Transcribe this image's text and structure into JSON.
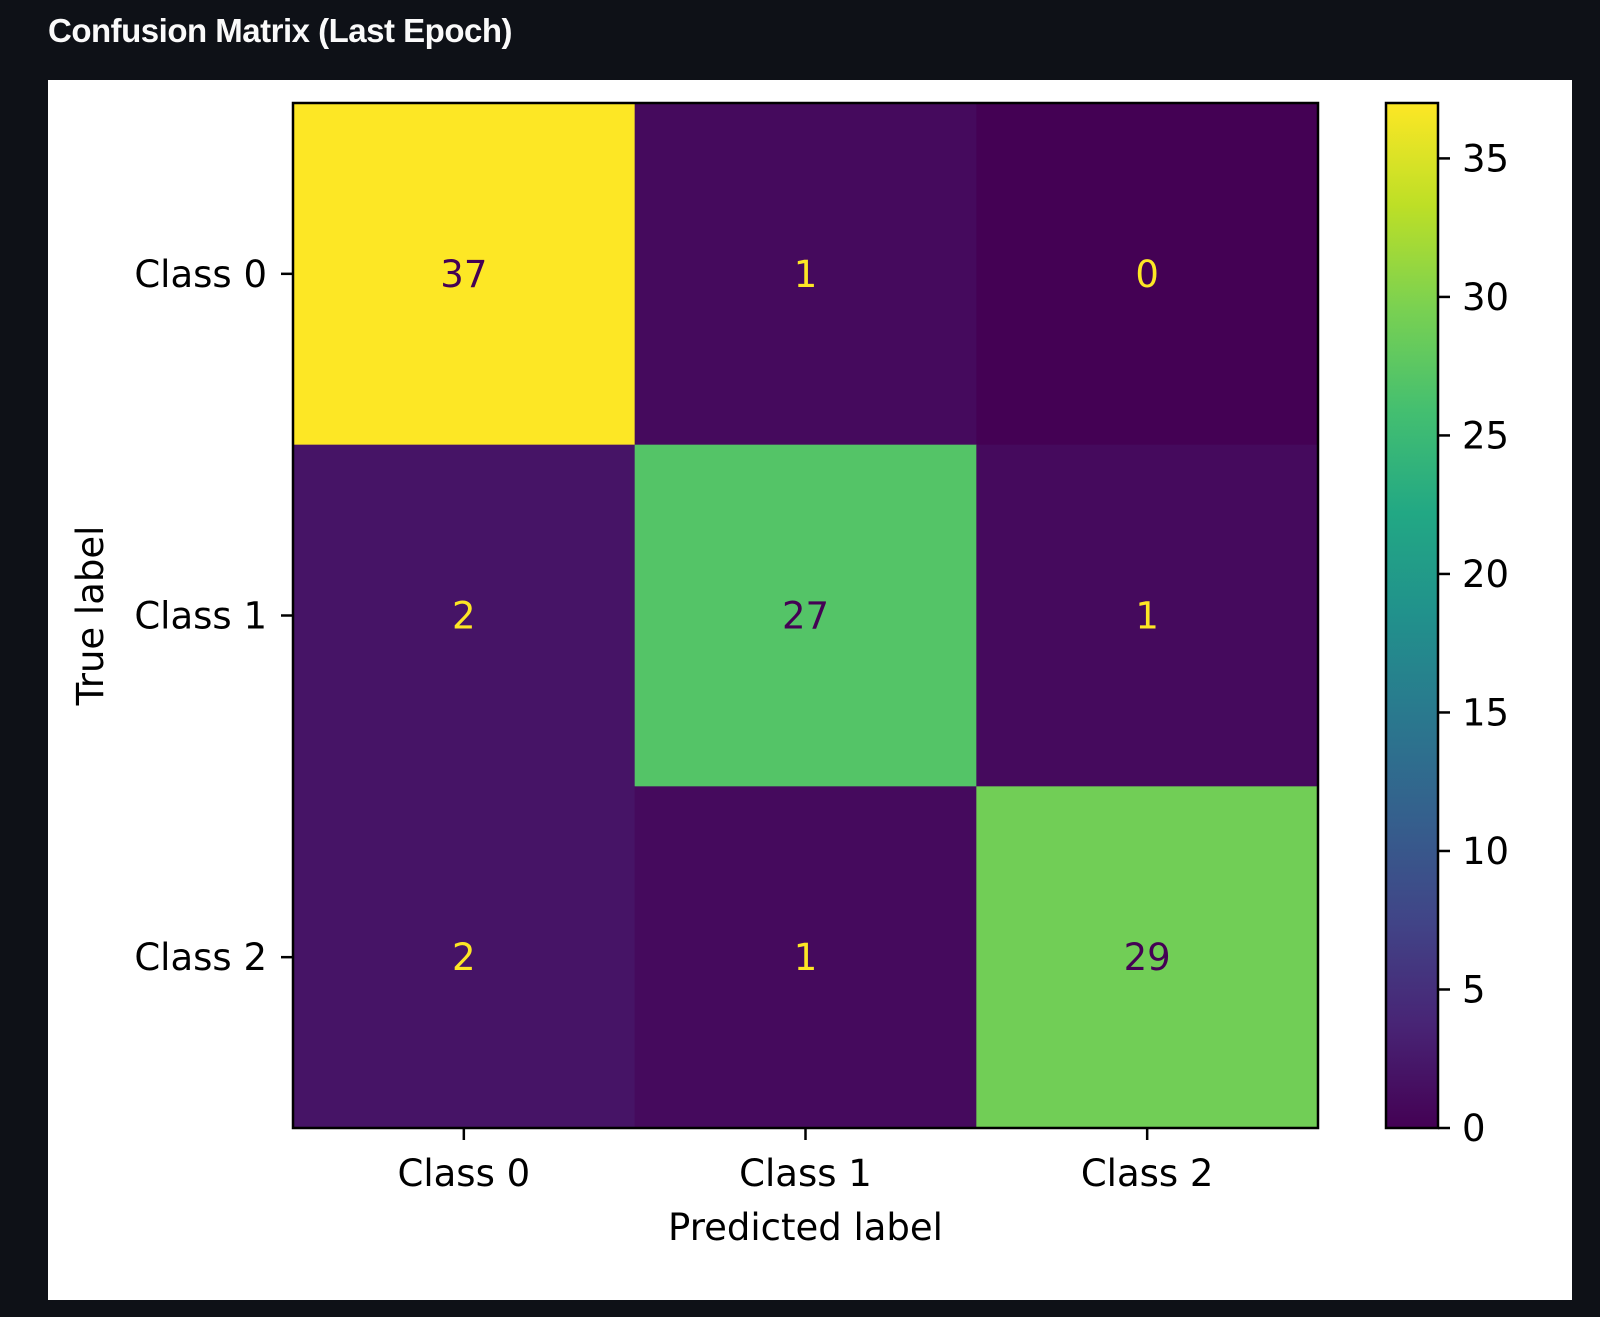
{
  "page": {
    "title": "Confusion Matrix (Last Epoch)"
  },
  "chart_data": {
    "type": "heatmap",
    "xlabel": "Predicted label",
    "ylabel": "True label",
    "x_categories": [
      "Class 0",
      "Class 1",
      "Class 2"
    ],
    "y_categories": [
      "Class 0",
      "Class 1",
      "Class 2"
    ],
    "values": [
      [
        37,
        1,
        0
      ],
      [
        2,
        27,
        1
      ],
      [
        2,
        1,
        29
      ]
    ],
    "colormap": "viridis",
    "colorbar": {
      "min": 0,
      "max": 37,
      "ticks": [
        0,
        5,
        10,
        15,
        20,
        25,
        30,
        35
      ]
    },
    "cell_text_colors": {
      "on_dark": "#fde725",
      "on_light": "#440154"
    }
  }
}
